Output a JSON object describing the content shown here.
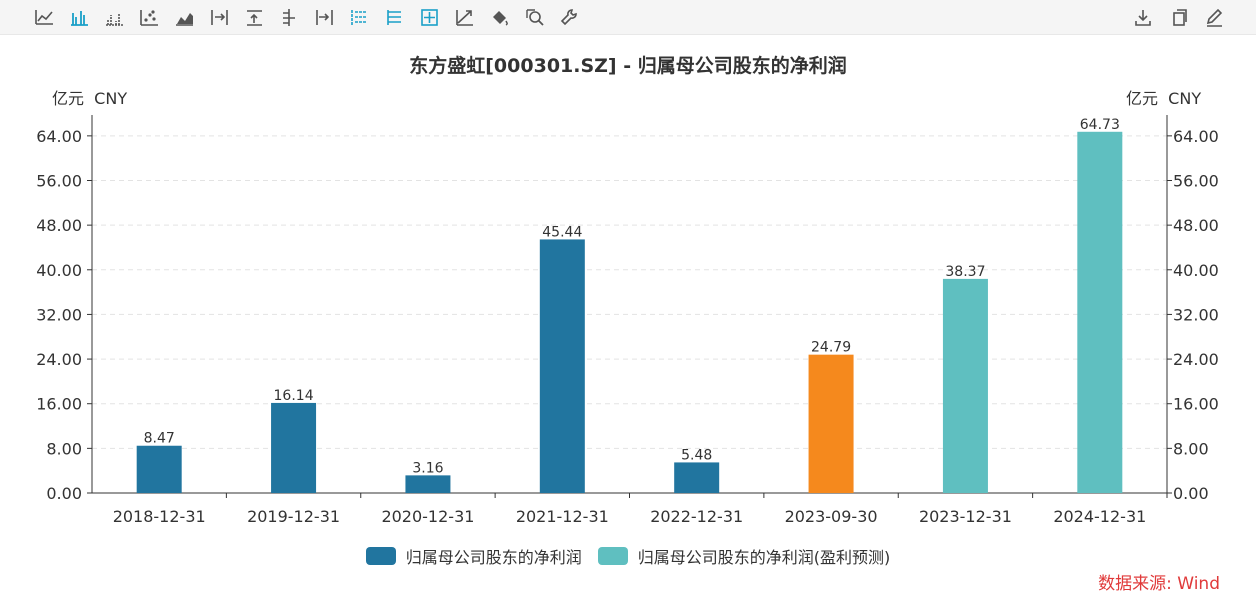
{
  "toolbar": {
    "left_icons": [
      "line-chart-icon",
      "bar-chart-icon",
      "grouped-bar-icon",
      "scatter-icon",
      "area-chart-icon",
      "align-right-icon",
      "align-top-icon",
      "align-center-icon",
      "align-right-end-icon",
      "list-left-icon",
      "list-grid-icon",
      "crosshair-icon",
      "trend-icon",
      "fill-bucket-icon",
      "zoom-search-icon",
      "wrench-icon"
    ],
    "right_icons": [
      "download-icon",
      "copy-icon",
      "edit-icon"
    ],
    "active_color": "#1aa0c8",
    "icon_color": "#555555"
  },
  "chart_data": {
    "type": "bar",
    "title": "东方盛虹[000301.SZ] - 归属母公司股东的净利润",
    "y_unit_left": "亿元  CNY",
    "y_unit_right": "亿元  CNY",
    "categories": [
      "2018-12-31",
      "2019-12-31",
      "2020-12-31",
      "2021-12-31",
      "2022-12-31",
      "2023-09-30",
      "2023-12-31",
      "2024-12-31"
    ],
    "values": [
      8.47,
      16.14,
      3.16,
      45.44,
      5.48,
      24.79,
      38.37,
      64.73
    ],
    "value_labels": [
      "8.47",
      "16.14",
      "3.16",
      "45.44",
      "5.48",
      "24.79",
      "38.37",
      "64.73"
    ],
    "bar_colors": [
      "#21759f",
      "#21759f",
      "#21759f",
      "#21759f",
      "#21759f",
      "#f5891d",
      "#5fbfc0",
      "#5fbfc0"
    ],
    "series": [
      {
        "name": "归属母公司股东的净利润",
        "color": "#21759f"
      },
      {
        "name": "归属母公司股东的净利润(盈利预测)",
        "color": "#5fbfc0"
      }
    ],
    "ylim": [
      0,
      67.2
    ],
    "yticks": [
      "0.00",
      "8.00",
      "16.00",
      "24.00",
      "32.00",
      "40.00",
      "48.00",
      "56.00",
      "64.00"
    ],
    "grid": true,
    "legend_position": "bottom-center"
  },
  "source": "数据来源: Wind"
}
